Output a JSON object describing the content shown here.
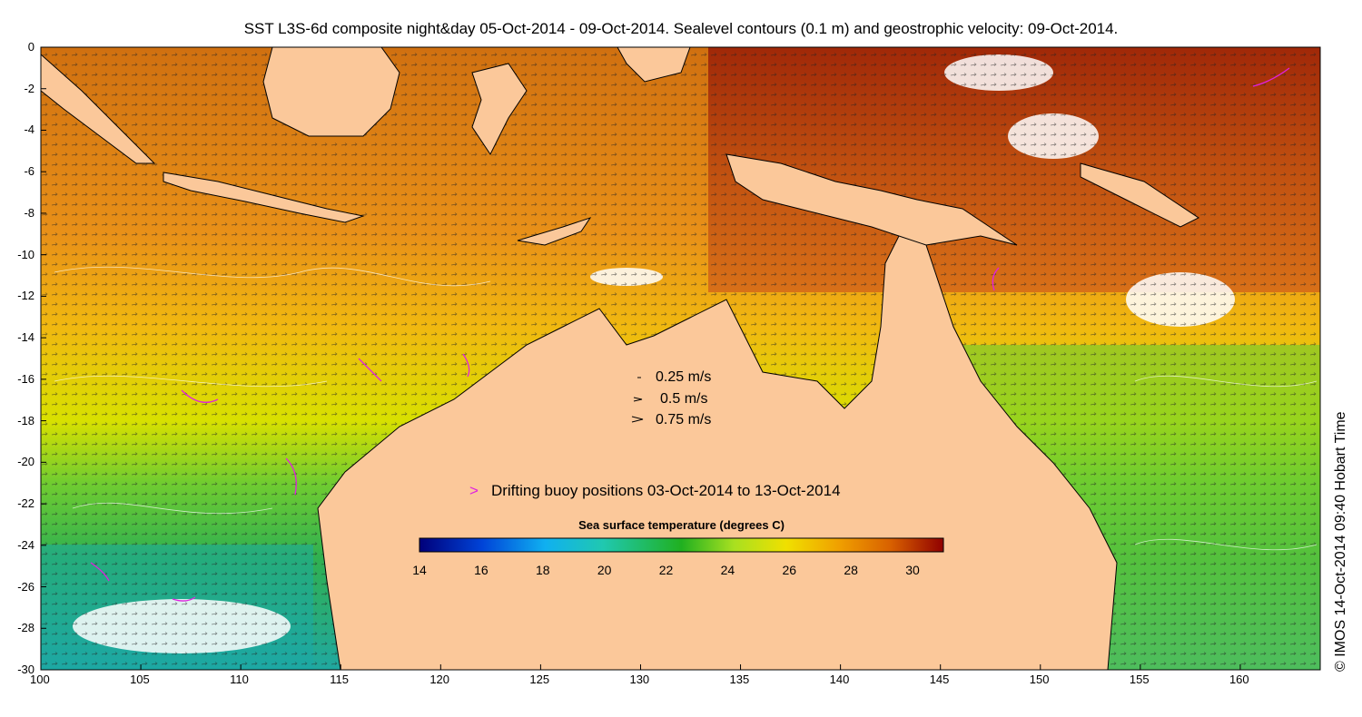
{
  "title": "SST L3S-6d composite night&day 05-Oct-2014 - 09-Oct-2014. Sealevel contours (0.1 m) and geostrophic velocity: 09-Oct-2014.",
  "credit": "© IMOS 14-Oct-2014 09:40 Hobart Time",
  "velocity_scale": [
    "0.25 m/s",
    "0.5 m/s",
    "0.75 m/s"
  ],
  "buoy_legend": "Drifting buoy positions 03-Oct-2014 to 13-Oct-2014",
  "colorbar": {
    "title": "Sea surface temperature (degrees C)",
    "ticks": [
      "14",
      "16",
      "18",
      "20",
      "22",
      "24",
      "26",
      "28",
      "30"
    ],
    "range": [
      14,
      31
    ]
  },
  "axes": {
    "lon_ticks": [
      "100",
      "105",
      "110",
      "115",
      "120",
      "125",
      "130",
      "135",
      "140",
      "145",
      "150",
      "155",
      "160"
    ],
    "lat_ticks": [
      "0",
      "-2",
      "-4",
      "-6",
      "-8",
      "-10",
      "-12",
      "-14",
      "-16",
      "-18",
      "-20",
      "-22",
      "-24",
      "-26",
      "-28",
      "-30"
    ],
    "lon_range": [
      100,
      164
    ],
    "lat_range": [
      0,
      -30
    ]
  },
  "colors": {
    "land": "#fbc89a",
    "buoy": "#e020e0",
    "warm": "#b03a10",
    "cool": "#3aa640"
  }
}
